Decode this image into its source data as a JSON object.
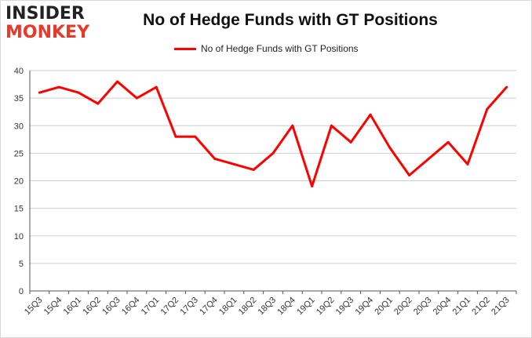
{
  "brand": {
    "line1": "INSIDER",
    "line2": "MONKEY"
  },
  "chart_data": {
    "type": "line",
    "title": "No of Hedge Funds with GT Positions",
    "xlabel": "",
    "ylabel": "",
    "ylim": [
      0,
      40
    ],
    "yticks": [
      0,
      5,
      10,
      15,
      20,
      25,
      30,
      35,
      40
    ],
    "grid": true,
    "legend_position": "top",
    "categories": [
      "15Q3",
      "15Q4",
      "16Q1",
      "16Q2",
      "16Q3",
      "16Q4",
      "17Q1",
      "17Q2",
      "17Q3",
      "17Q4",
      "18Q1",
      "18Q2",
      "18Q3",
      "18Q4",
      "19Q1",
      "19Q2",
      "19Q3",
      "19Q4",
      "20Q1",
      "20Q2",
      "20Q3",
      "20Q4",
      "21Q1",
      "21Q2",
      "21Q3"
    ],
    "series": [
      {
        "name": "No of Hedge Funds with GT Positions",
        "color": "#ff0000",
        "values": [
          36,
          37,
          36,
          34,
          38,
          35,
          37,
          28,
          28,
          24,
          23,
          22,
          25,
          30,
          19,
          30,
          27,
          32,
          26,
          21,
          24,
          27,
          23,
          33,
          37
        ]
      }
    ]
  }
}
